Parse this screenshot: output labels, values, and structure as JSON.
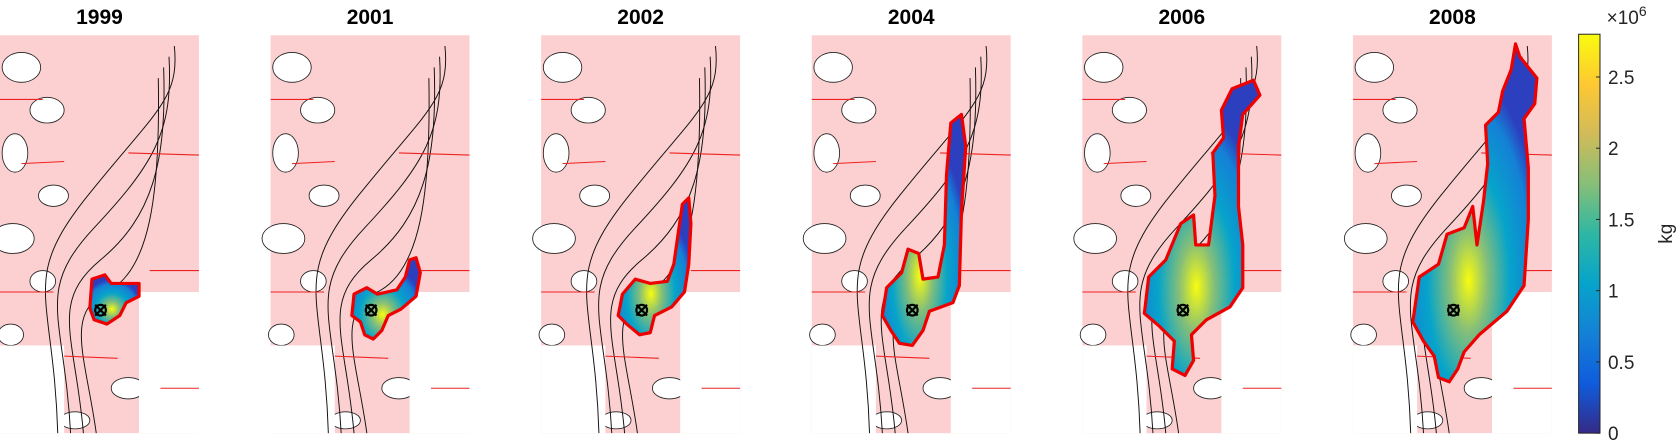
{
  "chart_data": {
    "type": "heatmap",
    "panels": [
      {
        "title": "1999"
      },
      {
        "title": "2001"
      },
      {
        "title": "2002"
      },
      {
        "title": "2004"
      },
      {
        "title": "2006"
      },
      {
        "title": "2008"
      }
    ],
    "colorbar": {
      "label": "kg",
      "multiplier": "×10",
      "multiplier_exponent": "6",
      "lim": [
        0,
        2.8
      ],
      "ticks": [
        0,
        0.5,
        1,
        1.5,
        2,
        2.5
      ],
      "colormap": [
        "#352a87",
        "#0f5cdd",
        "#1481d6",
        "#06a4ca",
        "#2eb7a4",
        "#87bf77",
        "#d1bb59",
        "#fec832",
        "#f9fb0e"
      ]
    }
  }
}
